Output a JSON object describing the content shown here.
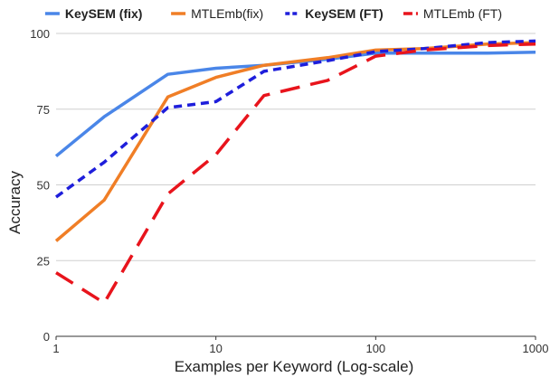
{
  "chart_data": {
    "type": "line",
    "title": "",
    "xlabel": "Examples per Keyword (Log-scale)",
    "ylabel": "Accuracy",
    "x_scale": "log",
    "xlim": [
      1,
      1000
    ],
    "ylim": [
      0,
      100
    ],
    "x_ticks": [
      1,
      10,
      100,
      1000
    ],
    "x_tick_labels": [
      "1",
      "10",
      "100",
      "1000"
    ],
    "y_ticks": [
      0,
      25,
      50,
      75,
      100
    ],
    "y_tick_labels": [
      "0",
      "25",
      "50",
      "75",
      "100"
    ],
    "grid": "horizontal",
    "legend_position": "top",
    "x": [
      1,
      2,
      5,
      10,
      20,
      50,
      100,
      200,
      500,
      1000
    ],
    "series": [
      {
        "name": "KeySEM (fix)",
        "color": "#4a86e8",
        "style": "solid",
        "bold": true,
        "values": [
          59.5,
          72.5,
          86.5,
          88.5,
          89.5,
          91.5,
          93.5,
          93.5,
          93.5,
          93.8
        ]
      },
      {
        "name": "MTLEmb(fix)",
        "color": "#f07e26",
        "style": "solid",
        "bold": false,
        "values": [
          31.5,
          45.0,
          79.0,
          85.5,
          89.5,
          92.0,
          94.5,
          95.0,
          96.5,
          97.0
        ]
      },
      {
        "name": "KeySEM (FT)",
        "color": "#1e1edb",
        "style": "short-dash",
        "bold": true,
        "values": [
          46.0,
          57.5,
          75.5,
          77.5,
          87.5,
          91.0,
          94.0,
          95.0,
          97.0,
          97.5
        ]
      },
      {
        "name": "MTLEmb (FT)",
        "color": "#e8141c",
        "style": "long-dash",
        "bold": false,
        "values": [
          21.0,
          11.0,
          47.0,
          60.0,
          79.5,
          84.5,
          92.5,
          94.5,
          96.0,
          96.5
        ]
      }
    ]
  }
}
